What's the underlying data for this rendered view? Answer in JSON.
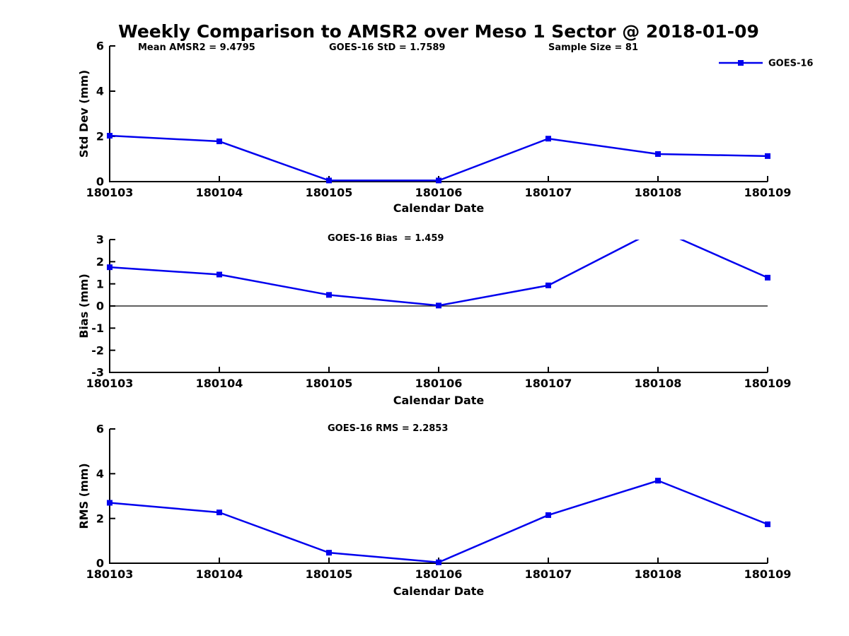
{
  "title": "Weekly Comparison to AMSR2 over Meso 1 Sector @ 2018-01-09",
  "colors": {
    "line": "#0000EE",
    "axis": "#000000",
    "zero_line": "#000000",
    "background": "#ffffff"
  },
  "chart_data": [
    {
      "id": "std_dev",
      "type": "line",
      "x_categories": [
        "180103",
        "180104",
        "180105",
        "180106",
        "180107",
        "180108",
        "180109"
      ],
      "series": [
        {
          "name": "GOES-16",
          "color": "#0000EE",
          "marker": "square",
          "values": [
            2.03,
            1.78,
            0.05,
            0.05,
            1.9,
            1.22,
            1.13
          ]
        }
      ],
      "xlabel": "Calendar Date",
      "ylabel": "Std Dev (mm)",
      "ylim": [
        0,
        6
      ],
      "yticks": [
        0,
        2,
        4,
        6
      ],
      "grid": false,
      "legend": {
        "position": "top-right"
      },
      "annotations": [
        {
          "text": "Mean AMSR2 = 9.4795"
        },
        {
          "text": "GOES-16 StD = 1.7589"
        },
        {
          "text": "Sample Size = 81"
        }
      ]
    },
    {
      "id": "bias",
      "type": "line",
      "title": "GOES-16 Bias  = 1.459",
      "x_categories": [
        "180103",
        "180104",
        "180105",
        "180106",
        "180107",
        "180108",
        "180109"
      ],
      "series": [
        {
          "name": "GOES-16",
          "color": "#0000EE",
          "marker": "square",
          "values": [
            1.75,
            1.42,
            0.5,
            0.02,
            0.93,
            3.47,
            1.28
          ]
        }
      ],
      "xlabel": "Calendar Date",
      "ylabel": "Bias (mm)",
      "ylim": [
        -3,
        3
      ],
      "yticks": [
        -3,
        -2,
        -1,
        0,
        1,
        2,
        3
      ],
      "zero_line": true,
      "grid": false
    },
    {
      "id": "rms",
      "type": "line",
      "title": "GOES-16 RMS = 2.2853",
      "x_categories": [
        "180103",
        "180104",
        "180105",
        "180106",
        "180107",
        "180108",
        "180109"
      ],
      "series": [
        {
          "name": "GOES-16",
          "color": "#0000EE",
          "marker": "square",
          "values": [
            2.7,
            2.27,
            0.47,
            0.04,
            2.15,
            3.69,
            1.74
          ]
        }
      ],
      "xlabel": "Calendar Date",
      "ylabel": "RMS (mm)",
      "ylim": [
        0,
        6
      ],
      "yticks": [
        0,
        2,
        4,
        6
      ],
      "grid": false
    }
  ]
}
